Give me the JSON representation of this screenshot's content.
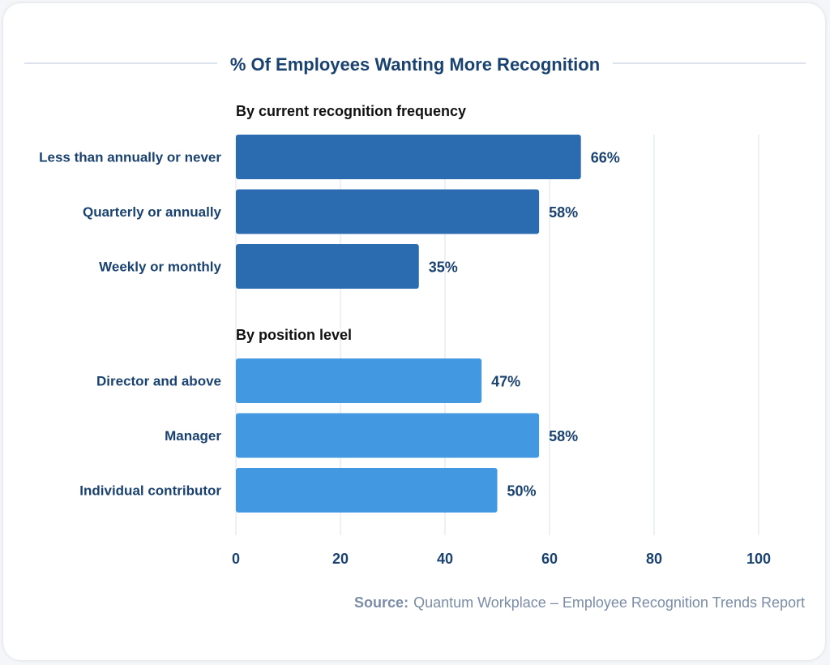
{
  "chart_data": {
    "type": "bar",
    "orientation": "horizontal",
    "title": "% Of Employees Wanting More Recognition",
    "groups": [
      {
        "label": "By current recognition frequency",
        "color": "#2b6cb0",
        "categories": [
          "Less than annually or never",
          "Quarterly or annually",
          "Weekly or monthly"
        ],
        "values": [
          66,
          58,
          35
        ],
        "data_labels": [
          "66%",
          "58%",
          "35%"
        ]
      },
      {
        "label": "By position level",
        "color": "#4299e1",
        "categories": [
          "Director and above",
          "Manager",
          "Individual contributor"
        ],
        "values": [
          47,
          58,
          50
        ],
        "data_labels": [
          "47%",
          "58%",
          "50%"
        ]
      }
    ],
    "xlim": [
      0,
      100
    ],
    "xticks": [
      "0",
      "20",
      "40",
      "60",
      "80",
      "100"
    ],
    "grid": true,
    "text_color": "#1a4270"
  },
  "source": {
    "label": "Source:",
    "text": "Quantum Workplace – Employee Recognition Trends Report"
  }
}
